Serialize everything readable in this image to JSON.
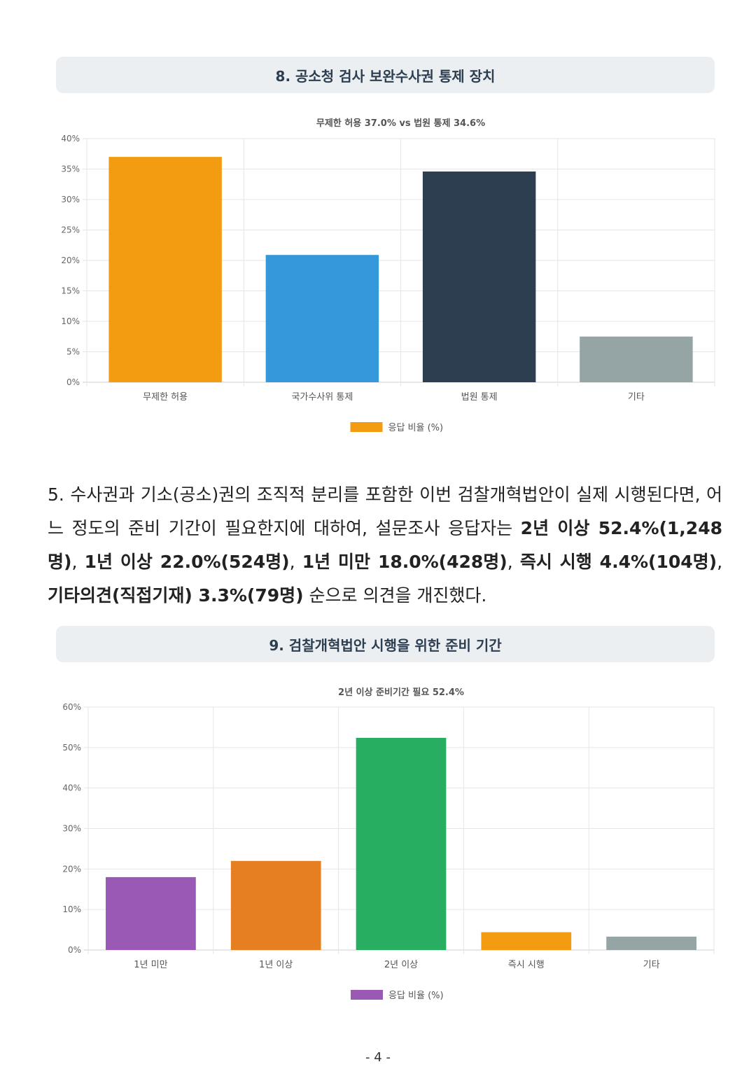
{
  "section8": {
    "title": "8. 공소청 검사 보완수사권 통제 장치",
    "chart_data": {
      "type": "bar",
      "title": "무제한 허용 37.0% vs 법원 통제 34.6%",
      "categories": [
        "무제한 허용",
        "국가수사위 통제",
        "법원 통제",
        "기타"
      ],
      "series": [
        {
          "name": "응답 비율 (%)",
          "values": [
            37.0,
            20.9,
            34.6,
            7.5
          ]
        }
      ],
      "colors": [
        "#f39c12",
        "#3498db",
        "#2c3e50",
        "#95a5a6"
      ],
      "legend_color": "#f39c12",
      "ylim": [
        0,
        40
      ],
      "yticks": [
        0,
        5,
        10,
        15,
        20,
        25,
        30,
        35,
        40
      ],
      "ytick_labels": [
        "0%",
        "5%",
        "10%",
        "15%",
        "20%",
        "25%",
        "30%",
        "35%",
        "40%"
      ],
      "grid": true,
      "legend": "bottom"
    }
  },
  "paragraph": {
    "t1": "5. 수사권과 기소(공소)권의 조직적 분리를 포함한 이번 검찰개혁법안이 실제 시행된다면, 어느 정도의 준비 기간이 필요한지에 대하여, 설문조사 응답자는 ",
    "b1": "2년 이상 52.4%(1,248명)",
    "s1": ", ",
    "b2": "1년 이상 22.0%(524명)",
    "s2": ", ",
    "b3": "1년 미만 18.0%(428명)",
    "s3": ", ",
    "b4": "즉시 시행 4.4%(104명)",
    "s4": ", ",
    "b5": "기타의견(직접기재) 3.3%(79명)",
    "t2": " 순으로 의견을 개진했다."
  },
  "section9": {
    "title": "9. 검찰개혁법안 시행을 위한 준비 기간",
    "chart_data": {
      "type": "bar",
      "title": "2년 이상 준비기간 필요 52.4%",
      "categories": [
        "1년 미만",
        "1년 이상",
        "2년 이상",
        "즉시 시행",
        "기타"
      ],
      "series": [
        {
          "name": "응답 비율 (%)",
          "values": [
            18.0,
            22.0,
            52.4,
            4.4,
            3.3
          ]
        }
      ],
      "colors": [
        "#9b59b6",
        "#e67e22",
        "#27ae60",
        "#f39c12",
        "#95a5a6"
      ],
      "legend_color": "#9b59b6",
      "ylim": [
        0,
        60
      ],
      "yticks": [
        0,
        10,
        20,
        30,
        40,
        50,
        60
      ],
      "ytick_labels": [
        "0%",
        "10%",
        "20%",
        "30%",
        "40%",
        "50%",
        "60%"
      ],
      "grid": true,
      "legend": "bottom"
    }
  },
  "page_number": "- 4 -"
}
